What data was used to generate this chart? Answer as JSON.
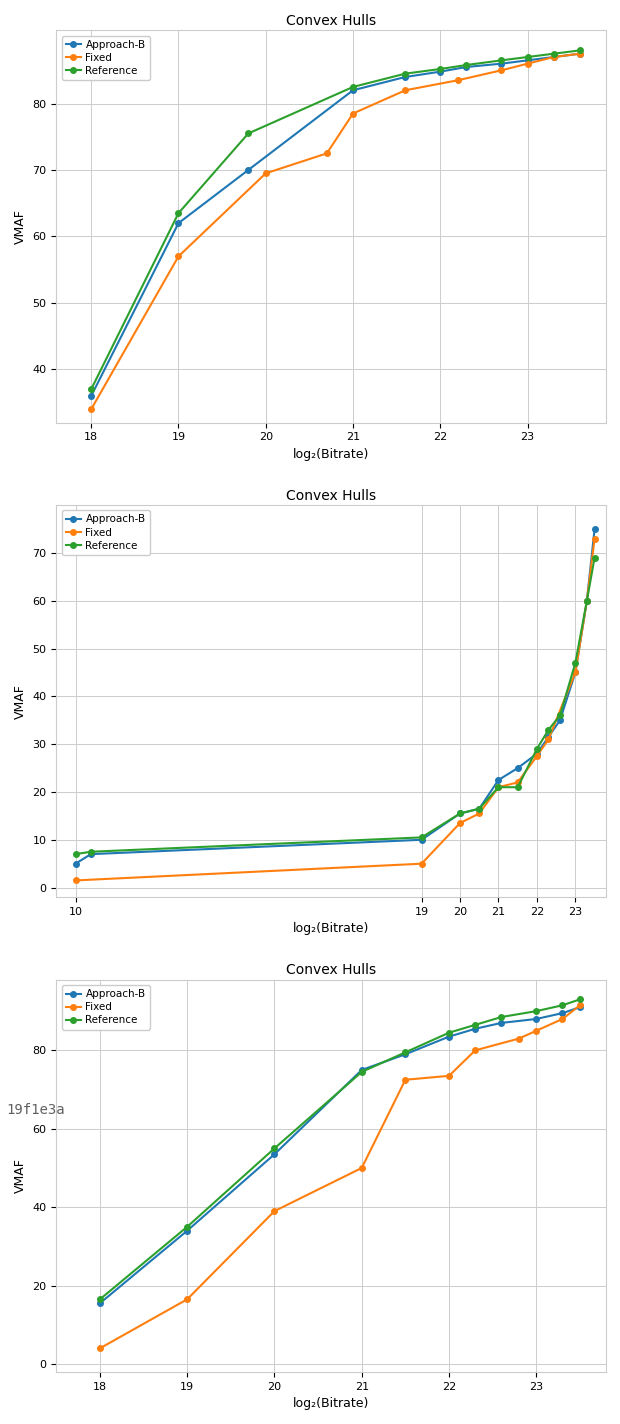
{
  "title": "Convex Hulls",
  "xlabel": "log₂(Bitrate)",
  "ylabel": "VMAF",
  "legend_labels": [
    "Approach-B",
    "Fixed",
    "Reference"
  ],
  "colors": [
    "#1f77b4",
    "#ff7f0e",
    "#2ca02c"
  ],
  "watermark": "19f1e3a",
  "subplot1": {
    "approach_x": [
      18.0,
      19.0,
      19.8,
      21.0,
      21.6,
      22.0,
      22.3,
      22.7,
      23.0,
      23.3,
      23.6
    ],
    "approach_y": [
      36.0,
      62.0,
      70.0,
      82.0,
      84.0,
      84.8,
      85.5,
      86.0,
      86.5,
      87.0,
      87.5
    ],
    "fixed_x": [
      18.0,
      19.0,
      20.0,
      20.7,
      21.0,
      21.6,
      22.2,
      22.7,
      23.0,
      23.3,
      23.6
    ],
    "fixed_y": [
      34.0,
      57.0,
      69.5,
      72.5,
      78.5,
      82.0,
      83.5,
      85.0,
      86.0,
      87.0,
      87.5
    ],
    "ref_x": [
      18.0,
      19.0,
      19.8,
      21.0,
      21.6,
      22.0,
      22.3,
      22.7,
      23.0,
      23.3,
      23.6
    ],
    "ref_y": [
      37.0,
      63.5,
      75.5,
      82.5,
      84.5,
      85.2,
      85.8,
      86.5,
      87.0,
      87.5,
      88.0
    ],
    "xlim": [
      17.6,
      23.9
    ],
    "ylim": [
      32,
      91
    ],
    "xticks": [
      18,
      19,
      20,
      21,
      22,
      23
    ],
    "yticks": [
      40,
      50,
      60,
      70,
      80
    ]
  },
  "subplot2": {
    "approach_x": [
      10.0,
      10.4,
      19.0,
      20.0,
      20.5,
      21.0,
      21.5,
      22.0,
      22.3,
      22.6,
      23.0,
      23.3,
      23.5
    ],
    "approach_y": [
      5.0,
      7.0,
      10.0,
      15.5,
      16.5,
      22.5,
      25.0,
      28.0,
      31.5,
      35.0,
      45.0,
      60.0,
      75.0
    ],
    "fixed_x": [
      10.0,
      19.0,
      20.0,
      20.5,
      21.0,
      21.5,
      22.0,
      22.3,
      23.0,
      23.3,
      23.5
    ],
    "fixed_y": [
      1.5,
      5.0,
      13.5,
      15.5,
      21.0,
      22.0,
      27.5,
      31.0,
      45.0,
      60.0,
      73.0
    ],
    "ref_x": [
      10.0,
      10.4,
      19.0,
      20.0,
      20.5,
      21.0,
      21.5,
      22.0,
      22.3,
      22.6,
      23.0,
      23.3,
      23.5
    ],
    "ref_y": [
      7.0,
      7.5,
      10.5,
      15.5,
      16.5,
      21.0,
      21.0,
      29.0,
      33.0,
      36.0,
      47.0,
      60.0,
      69.0
    ],
    "xlim": [
      9.5,
      23.8
    ],
    "ylim": [
      -2,
      80
    ],
    "xticks": [
      10,
      19,
      20,
      21,
      22,
      23
    ],
    "yticks": [
      0,
      10,
      20,
      30,
      40,
      50,
      60,
      70
    ]
  },
  "subplot3": {
    "approach_x": [
      18.0,
      19.0,
      20.0,
      21.0,
      21.5,
      22.0,
      22.3,
      22.6,
      23.0,
      23.3,
      23.5
    ],
    "approach_y": [
      15.5,
      34.0,
      53.5,
      75.0,
      79.0,
      83.5,
      85.5,
      87.0,
      88.0,
      89.5,
      91.0
    ],
    "fixed_x": [
      18.0,
      19.0,
      20.0,
      21.0,
      21.5,
      22.0,
      22.3,
      22.8,
      23.0,
      23.3,
      23.5
    ],
    "fixed_y": [
      4.0,
      16.5,
      39.0,
      50.0,
      72.5,
      73.5,
      80.0,
      83.0,
      85.0,
      88.0,
      91.5
    ],
    "ref_x": [
      18.0,
      19.0,
      20.0,
      21.0,
      21.5,
      22.0,
      22.3,
      22.6,
      23.0,
      23.3,
      23.5
    ],
    "ref_y": [
      16.5,
      35.0,
      55.0,
      74.5,
      79.5,
      84.5,
      86.5,
      88.5,
      90.0,
      91.5,
      93.0
    ],
    "xlim": [
      17.5,
      23.8
    ],
    "ylim": [
      -2,
      98
    ],
    "xticks": [
      18,
      19,
      20,
      21,
      22,
      23
    ],
    "yticks": [
      0,
      20,
      40,
      60,
      80
    ]
  }
}
